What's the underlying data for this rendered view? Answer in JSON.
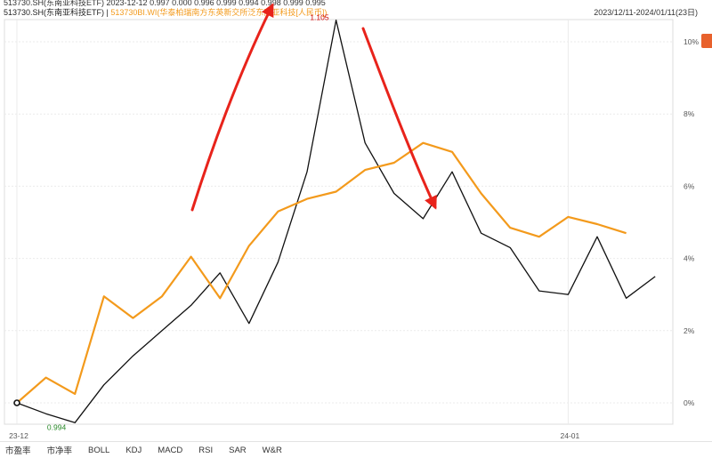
{
  "header": {
    "row1": "513730.SH(东南亚科技ETF)  2023-12-12  0.997  0.000  0.996  0.999  0.994  0.998  0.999  0.995",
    "series1_label": "513730.SH(东南亚科技ETF)",
    "separator": " | ",
    "series2_label": "513730BI.WI(华泰柏瑞南方东英新交所泛东南亚科技[人民币])",
    "date_range": "2023/12/11-2024/01/11(23日)"
  },
  "chart_data": {
    "type": "line",
    "x_labels": [
      "23-12",
      "24-01"
    ],
    "x_label_index": [
      0,
      19
    ],
    "ylim": [
      -0.55,
      10.8
    ],
    "y_ticks": [
      0,
      2,
      4,
      6,
      8,
      10
    ],
    "y_tick_labels": [
      "0%",
      "2%",
      "4%",
      "6%",
      "8%",
      "10%"
    ],
    "grid": true,
    "series": [
      {
        "name": "513730.SH(东南亚科技ETF)",
        "color": "#111111",
        "values": [
          0.0,
          -0.3,
          -0.55,
          0.5,
          1.3,
          2.0,
          2.7,
          3.6,
          2.2,
          3.9,
          6.4,
          10.6,
          7.2,
          5.8,
          5.1,
          6.4,
          4.7,
          4.3,
          3.1,
          3.0,
          4.6,
          2.9,
          3.5
        ]
      },
      {
        "name": "513730BI.WI(华泰柏瑞南方东英新交所泛东南亚科技[人民币])",
        "color": "#f39a1c",
        "values": [
          0.0,
          0.7,
          0.25,
          2.95,
          2.35,
          2.95,
          4.05,
          2.9,
          4.35,
          5.3,
          5.65,
          5.85,
          6.45,
          6.65,
          7.2,
          6.95,
          5.8,
          4.85,
          4.6,
          5.15,
          4.95,
          4.7
        ]
      }
    ],
    "annotations": [
      {
        "text": "1.105",
        "color": "#cc0000",
        "series": 0,
        "index": 11,
        "position": "left"
      },
      {
        "text": "0.994",
        "color": "#2a8a2a",
        "series": 0,
        "index": 2,
        "position": "below-left"
      }
    ],
    "arrows": [
      {
        "color": "#e8231b",
        "direction": "up"
      },
      {
        "color": "#e8231b",
        "direction": "down"
      }
    ]
  },
  "indicator_tabs": [
    "市盈率",
    "市净率",
    "BOLL",
    "KDJ",
    "MACD",
    "RSI",
    "SAR",
    "W&R"
  ]
}
